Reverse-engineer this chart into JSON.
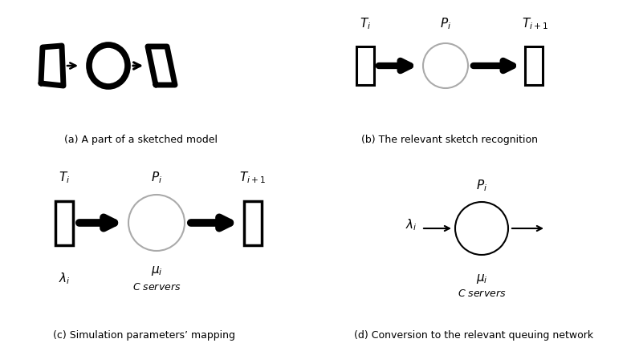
{
  "bg_color": "#ffffff",
  "panel_a_label": "(a) A part of a sketched model",
  "panel_b_label": "(b) The relevant sketch recognition",
  "panel_c_label": "(c) Simulation parameters’ mapping",
  "panel_d_label": "(d) Conversion to the relevant queuing network",
  "label_fontsize": 9.0
}
